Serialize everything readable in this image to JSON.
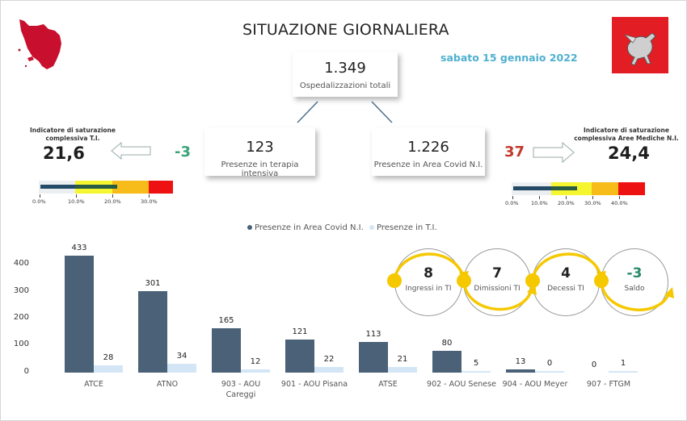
{
  "header": {
    "title": "SITUAZIONE GIORNALIERA",
    "date": "sabato 15 gennaio 2022",
    "logo_left": "tuscany-map-icon",
    "logo_right": "pegasus-flag-icon"
  },
  "kpis": {
    "total": {
      "value": "1.349",
      "label": "Ospedalizzazioni totali"
    },
    "ti": {
      "value": "123",
      "label": "Presenze in terapia intensiva"
    },
    "covid_ni": {
      "value": "1.226",
      "label": "Presenze in Area Covid N.I."
    }
  },
  "indicators": {
    "ti": {
      "title_line1": "Indicatore di saturazione",
      "title_line2": "complessiva T.I.",
      "value": "21,6",
      "delta": "-3",
      "delta_color": "#3aa37a",
      "arrow": "arrow-left-icon",
      "ticks": [
        "0.0%",
        "10.0%",
        "20.0%",
        "30.0%"
      ]
    },
    "ni": {
      "title_line1": "Indicatore di saturazione",
      "title_line2": "complessiva Aree Mediche N.I.",
      "value": "24,4",
      "delta": "37",
      "delta_color": "#c0392b",
      "arrow": "arrow-right-icon",
      "ticks": [
        "0.0%",
        "10.0%",
        "20.0%",
        "30.0%",
        "40.0%"
      ]
    }
  },
  "legend": {
    "series1": "Presenze in Area Covid N.I.",
    "series2": "Presenze in T.I."
  },
  "chart_data": {
    "type": "bar",
    "title": "",
    "categories": [
      "ATCE",
      "ATNO",
      "903 - AOU Careggi",
      "901 - AOU Pisana",
      "ATSE",
      "902 - AOU Senese",
      "904 - AOU Meyer",
      "907 - FTGM"
    ],
    "series": [
      {
        "name": "Presenze in Area Covid N.I.",
        "color": "#4a6178",
        "values": [
          433,
          301,
          165,
          121,
          113,
          80,
          13,
          0
        ]
      },
      {
        "name": "Presenze in T.I.",
        "color": "#d4e6f6",
        "values": [
          28,
          34,
          12,
          22,
          21,
          5,
          0,
          1
        ]
      }
    ],
    "yticks": [
      "0",
      "100",
      "200",
      "300",
      "400"
    ],
    "ylim": [
      0,
      450
    ],
    "legend_position": "top",
    "grid": false
  },
  "flow": {
    "items": [
      {
        "value": "8",
        "label": "Ingressi in TI"
      },
      {
        "value": "7",
        "label": "Dimissioni TI"
      },
      {
        "value": "4",
        "label": "Decessi TI"
      },
      {
        "value": "-3",
        "label": "Saldo"
      }
    ]
  }
}
